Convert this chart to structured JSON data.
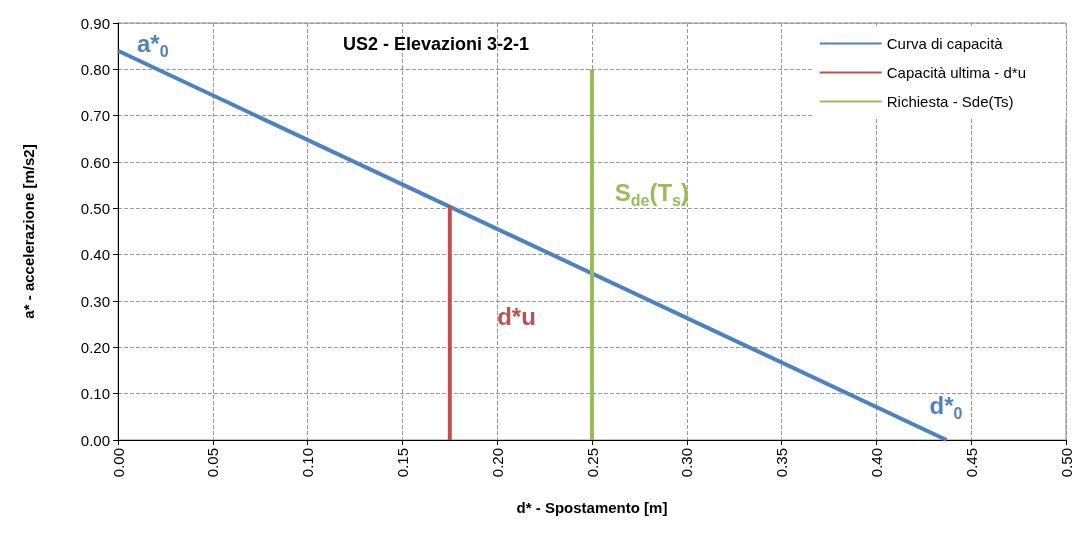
{
  "chart_data": {
    "type": "line",
    "title": "US2 - Elevazioni 3-2-1",
    "xlabel": "d* - Spostamento [m]",
    "ylabel": "a* - accelerazione [m/s2]",
    "series": [
      {
        "name": "Curva di capacità",
        "color": "#4f81bd",
        "x": [
          0,
          0.437
        ],
        "values": [
          0.84,
          0
        ]
      },
      {
        "name": "Capacità ultima - d*u",
        "color": "#c0504d",
        "x": [
          0.175,
          0.175
        ],
        "values": [
          0,
          0.505
        ]
      },
      {
        "name": "Richiesta - Sde(Ts)",
        "color": "#9bbb59",
        "x": [
          0.25,
          0.25
        ],
        "values": [
          0,
          0.8
        ]
      }
    ],
    "xlim": [
      0,
      0.5
    ],
    "xticks": [
      {
        "value": 0,
        "label": "0.00"
      },
      {
        "value": 0.05,
        "label": "0.05"
      },
      {
        "value": 0.1,
        "label": "0.10"
      },
      {
        "value": 0.15,
        "label": "0.15"
      },
      {
        "value": 0.2,
        "label": "0.20"
      },
      {
        "value": 0.25,
        "label": "0.25"
      },
      {
        "value": 0.3,
        "label": "0.30"
      },
      {
        "value": 0.35,
        "label": "0.35"
      },
      {
        "value": 0.4,
        "label": "0.40"
      },
      {
        "value": 0.45,
        "label": "0.45"
      },
      {
        "value": 0.5,
        "label": "0.50"
      }
    ],
    "ylim": [
      0,
      0.9
    ],
    "yticks": [
      {
        "value": 0,
        "label": "0.00"
      },
      {
        "value": 0.1,
        "label": "0.10"
      },
      {
        "value": 0.2,
        "label": "0.20"
      },
      {
        "value": 0.3,
        "label": "0.30"
      },
      {
        "value": 0.4,
        "label": "0.40"
      },
      {
        "value": 0.5,
        "label": "0.50"
      },
      {
        "value": 0.6,
        "label": "0.60"
      },
      {
        "value": 0.7,
        "label": "0.70"
      },
      {
        "value": 0.8,
        "label": "0.80"
      },
      {
        "value": 0.9,
        "label": "0.90"
      }
    ],
    "annotations": [
      "a*$_{0}$",
      "d*$_{0}$",
      "d*u",
      "S$_{de}$(T$_{s}$)"
    ],
    "grid": true,
    "legend": "top right",
    "line_style": "solid",
    "marker": "none"
  }
}
